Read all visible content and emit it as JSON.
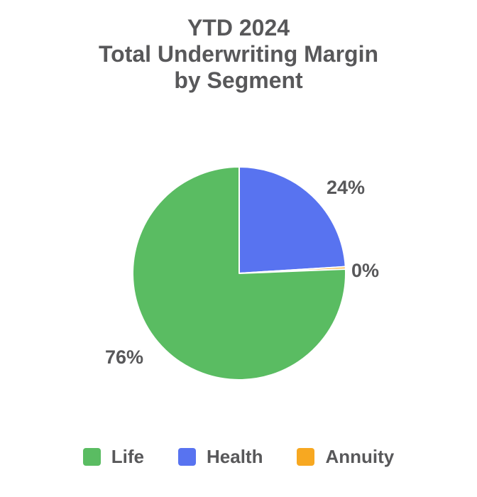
{
  "chart_data": {
    "type": "pie",
    "title_lines": [
      "YTD 2024",
      "Total Underwriting Margin",
      "by Segment"
    ],
    "segments": [
      {
        "name": "Life",
        "value_pct": 76,
        "label_text": "76%",
        "color": "#5abc62"
      },
      {
        "name": "Health",
        "value_pct": 24,
        "label_text": "24%",
        "color": "#5873f0"
      },
      {
        "name": "Annuity",
        "value_pct": 0,
        "label_text": "0%",
        "color": "#f7a821"
      }
    ],
    "draw_order": [
      "Health",
      "Annuity",
      "Life"
    ],
    "start_angle_deg": 0,
    "direction": "clockwise",
    "slice_border_color": "#ffffff",
    "legend_position": "bottom",
    "legend_entries": [
      "Life",
      "Health",
      "Annuity"
    ],
    "text_color": "#58585a",
    "background_color": "#ffffff"
  }
}
